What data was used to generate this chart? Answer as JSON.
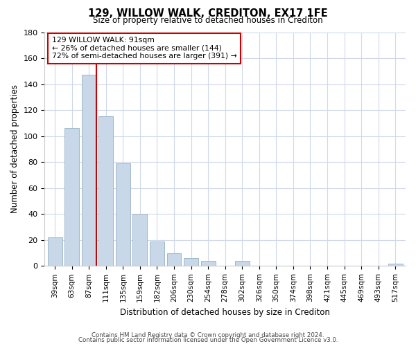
{
  "title": "129, WILLOW WALK, CREDITON, EX17 1FE",
  "subtitle": "Size of property relative to detached houses in Crediton",
  "xlabel": "Distribution of detached houses by size in Crediton",
  "ylabel": "Number of detached properties",
  "bar_labels": [
    "39sqm",
    "63sqm",
    "87sqm",
    "111sqm",
    "135sqm",
    "159sqm",
    "182sqm",
    "206sqm",
    "230sqm",
    "254sqm",
    "278sqm",
    "302sqm",
    "326sqm",
    "350sqm",
    "374sqm",
    "398sqm",
    "421sqm",
    "445sqm",
    "469sqm",
    "493sqm",
    "517sqm"
  ],
  "bar_values": [
    22,
    106,
    147,
    115,
    79,
    40,
    19,
    10,
    6,
    4,
    0,
    4,
    0,
    0,
    0,
    0,
    0,
    0,
    0,
    0,
    2
  ],
  "bar_color": "#c8d8e8",
  "bar_edge_color": "#a0b8cc",
  "vline_color": "#cc0000",
  "ylim": [
    0,
    180
  ],
  "yticks": [
    0,
    20,
    40,
    60,
    80,
    100,
    120,
    140,
    160,
    180
  ],
  "annotation_title": "129 WILLOW WALK: 91sqm",
  "annotation_line1": "← 26% of detached houses are smaller (144)",
  "annotation_line2": "72% of semi-detached houses are larger (391) →",
  "footer1": "Contains HM Land Registry data © Crown copyright and database right 2024.",
  "footer2": "Contains public sector information licensed under the Open Government Licence v3.0.",
  "background_color": "#ffffff",
  "grid_color": "#d0d8e8"
}
